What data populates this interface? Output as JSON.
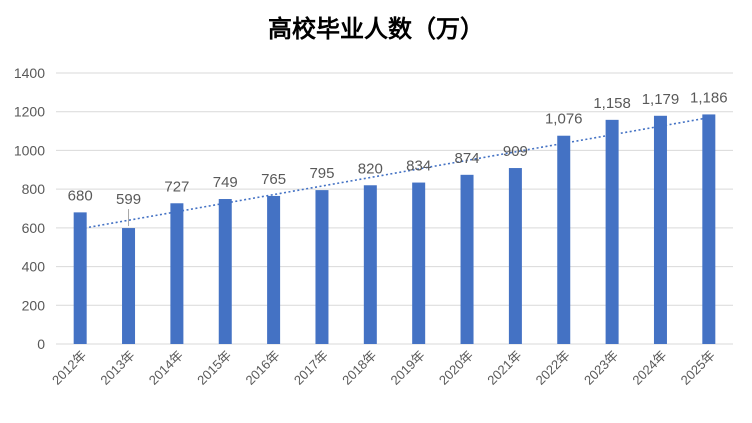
{
  "chart_data": {
    "type": "bar",
    "title": "高校毕业人数（万）",
    "xlabel": "",
    "ylabel": "",
    "categories": [
      "2012年",
      "2013年",
      "2014年",
      "2015年",
      "2016年",
      "2017年",
      "2018年",
      "2019年",
      "2020年",
      "2021年",
      "2022年",
      "2023年",
      "2024年",
      "2025年"
    ],
    "values": [
      680,
      599,
      727,
      749,
      765,
      795,
      820,
      834,
      874,
      909,
      1076,
      1158,
      1179,
      1186
    ],
    "data_labels": [
      "680",
      "599",
      "727",
      "749",
      "765",
      "795",
      "820",
      "834",
      "874",
      "909",
      "1,076",
      "1,158",
      "1,179",
      "1,186"
    ],
    "ylim": [
      0,
      1400
    ],
    "yticks": [
      "0",
      "200",
      "400",
      "600",
      "800",
      "1000",
      "1200",
      "1400"
    ],
    "ytick_values": [
      0,
      200,
      400,
      600,
      800,
      1000,
      1200,
      1400
    ],
    "grid": true,
    "trendline": "linear",
    "legend": "none",
    "colors": {
      "bar": "#4472C4",
      "trendline": "#4472C4",
      "grid": "#D9D9D9",
      "text": "#595959",
      "title": "#404040"
    }
  }
}
